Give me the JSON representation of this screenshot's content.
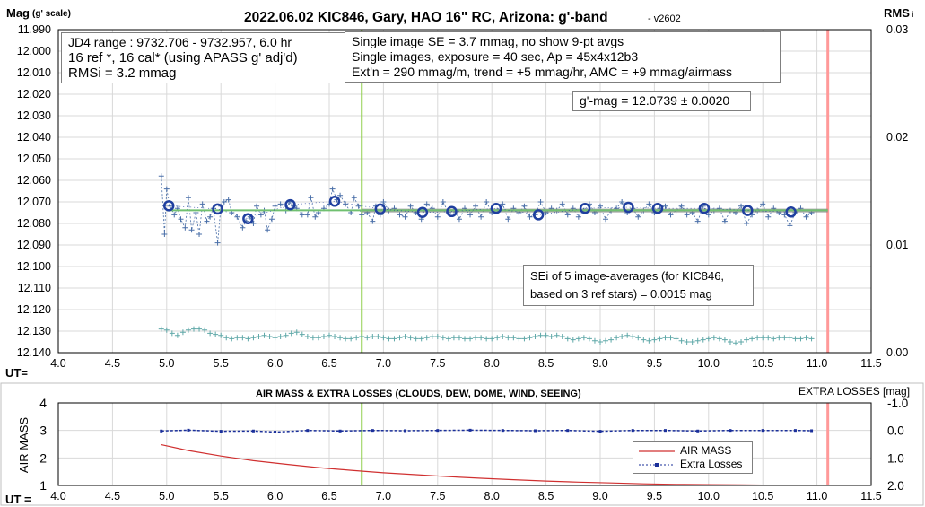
{
  "chart_data": [
    {
      "type": "scatter",
      "title": "2022.06.02 KIC846, Gary, HAO 16\" RC, Arizona: g'-band",
      "version": "- v2602",
      "ylabel": "Mag",
      "ylabel_suffix": "(g' scale)",
      "y2label": "RMS",
      "y2label_suffix": "i",
      "xlabel": "UT=",
      "xlim": [
        4.0,
        11.5
      ],
      "ylim": [
        12.14,
        11.99
      ],
      "y2lim": [
        0.0,
        0.03
      ],
      "x_ticks": [
        "4.0",
        "4.5",
        "5.0",
        "5.5",
        "6.0",
        "6.5",
        "7.0",
        "7.5",
        "8.0",
        "8.5",
        "9.0",
        "9.5",
        "10.0",
        "10.5",
        "11.0",
        "11.5"
      ],
      "y_ticks": [
        "11.990",
        "12.000",
        "12.010",
        "12.020",
        "12.030",
        "12.040",
        "12.050",
        "12.060",
        "12.070",
        "12.080",
        "12.090",
        "12.100",
        "12.110",
        "12.120",
        "12.130",
        "12.140"
      ],
      "y2_ticks": [
        "0.03",
        "0.02",
        "0.01",
        "0.00"
      ],
      "grid": true,
      "annotations": [
        [
          "JD4 range : 9732.706 - 9732.957,  6.0 hr",
          "16 ref *, 16 cal* (using APASS g' adj'd)",
          "RMSi = 3.2 mmag"
        ],
        [
          "Single image SE = 3.7 mmag, no show  9-pt avgs",
          "Single images, exposure = 40 sec, Ap = 45x4x12b3",
          "Ext'n = 290 mmag/m, trend = +5 mmag/hr, AMC = +9 mmag/airmass"
        ],
        [
          "g'-mag = 12.0739 ± 0.0020"
        ],
        [
          "SEi of 5 image-averages (for KIC846,",
          "based on 3 ref stars) = 0.0015 mag"
        ]
      ],
      "vertical_lines": [
        {
          "name": "mid-time",
          "x": 6.8,
          "color": "#92d050"
        },
        {
          "name": "end-marker",
          "x": 11.1,
          "color": "#ff9999"
        }
      ],
      "fit_line": {
        "y": 12.0739,
        "x_start": 5.0,
        "x_end": 11.1,
        "color": "#70c070"
      },
      "trend_line": {
        "y": 12.074,
        "x_start": 6.8,
        "x_end": 11.1,
        "color": "#808080"
      },
      "series": [
        {
          "kind": "image-averages",
          "color": "#1f3f9f",
          "x": [
            5.02,
            5.47,
            5.75,
            6.14,
            6.55,
            6.97,
            7.36,
            7.63,
            8.04,
            8.43,
            8.86,
            9.26,
            9.53,
            9.96,
            10.36,
            10.76
          ],
          "y": [
            12.0718,
            12.0733,
            12.0778,
            12.0713,
            12.0697,
            12.0733,
            12.0749,
            12.0745,
            12.073,
            12.076,
            12.073,
            12.0725,
            12.073,
            12.073,
            12.074,
            12.0747
          ]
        },
        {
          "kind": "single-images",
          "color": "#4a6fa8",
          "x": [
            4.95,
            4.98,
            5.0,
            5.03,
            5.07,
            5.1,
            5.13,
            5.17,
            5.2,
            5.23,
            5.27,
            5.3,
            5.33,
            5.37,
            5.4,
            5.43,
            5.47,
            5.5,
            5.53,
            5.57,
            5.6,
            5.65,
            5.7,
            5.73,
            5.77,
            5.8,
            5.83,
            5.87,
            5.9,
            5.93,
            5.97,
            6.0,
            6.05,
            6.1,
            6.13,
            6.17,
            6.2,
            6.25,
            6.3,
            6.33,
            6.37,
            6.4,
            6.45,
            6.5,
            6.53,
            6.57,
            6.6,
            6.65,
            6.7,
            6.73,
            6.77,
            6.8,
            6.85,
            6.9,
            6.93,
            6.97,
            7.0,
            7.05,
            7.1,
            7.15,
            7.2,
            7.25,
            7.3,
            7.35,
            7.4,
            7.45,
            7.5,
            7.55,
            7.6,
            7.65,
            7.7,
            7.75,
            7.8,
            7.85,
            7.9,
            7.95,
            8.0,
            8.05,
            8.1,
            8.15,
            8.2,
            8.25,
            8.3,
            8.35,
            8.4,
            8.45,
            8.5,
            8.55,
            8.6,
            8.65,
            8.7,
            8.75,
            8.8,
            8.85,
            8.9,
            8.95,
            9.0,
            9.05,
            9.1,
            9.15,
            9.2,
            9.25,
            9.3,
            9.35,
            9.4,
            9.45,
            9.5,
            9.55,
            9.6,
            9.65,
            9.7,
            9.75,
            9.8,
            9.85,
            9.9,
            9.95,
            10.0,
            10.05,
            10.1,
            10.15,
            10.2,
            10.25,
            10.3,
            10.35,
            10.4,
            10.45,
            10.5,
            10.55,
            10.6,
            10.65,
            10.7,
            10.75,
            10.8,
            10.85,
            10.9,
            10.95
          ],
          "y": [
            12.058,
            12.085,
            12.064,
            12.072,
            12.076,
            12.073,
            12.078,
            12.082,
            12.068,
            12.083,
            12.075,
            12.085,
            12.071,
            12.079,
            12.077,
            12.073,
            12.089,
            12.072,
            12.07,
            12.069,
            12.075,
            12.077,
            12.082,
            12.079,
            12.077,
            12.08,
            12.072,
            12.076,
            12.074,
            12.083,
            12.078,
            12.072,
            12.071,
            12.074,
            12.07,
            12.072,
            12.073,
            12.076,
            12.076,
            12.068,
            12.077,
            12.075,
            12.073,
            12.071,
            12.064,
            12.069,
            12.067,
            12.071,
            12.075,
            12.068,
            12.072,
            12.076,
            12.075,
            12.079,
            12.072,
            12.076,
            12.07,
            12.074,
            12.073,
            12.076,
            12.077,
            12.072,
            12.075,
            12.078,
            12.071,
            12.073,
            12.077,
            12.07,
            12.075,
            12.074,
            12.078,
            12.073,
            12.076,
            12.072,
            12.077,
            12.07,
            12.075,
            12.074,
            12.071,
            12.078,
            12.073,
            12.075,
            12.072,
            12.077,
            12.076,
            12.07,
            12.075,
            12.073,
            12.074,
            12.071,
            12.076,
            12.073,
            12.077,
            12.074,
            12.071,
            12.075,
            12.072,
            12.078,
            12.074,
            12.073,
            12.07,
            12.075,
            12.073,
            12.077,
            12.074,
            12.071,
            12.075,
            12.073,
            12.072,
            12.076,
            12.074,
            12.072,
            12.076,
            12.075,
            12.079,
            12.072,
            12.076,
            12.074,
            12.073,
            12.079,
            12.074,
            12.075,
            12.072,
            12.08,
            12.076,
            12.074,
            12.071,
            12.077,
            12.073,
            12.075,
            12.076,
            12.081,
            12.075,
            12.073,
            12.077,
            12.075
          ]
        },
        {
          "kind": "RMSi",
          "axis": "right",
          "color": "#5fa8a8",
          "x": [
            4.95,
            5.0,
            5.05,
            5.1,
            5.15,
            5.2,
            5.25,
            5.3,
            5.35,
            5.4,
            5.45,
            5.5,
            5.55,
            5.6,
            5.65,
            5.7,
            5.75,
            5.8,
            5.85,
            5.9,
            5.95,
            6.0,
            6.05,
            6.1,
            6.15,
            6.2,
            6.25,
            6.3,
            6.35,
            6.4,
            6.45,
            6.5,
            6.55,
            6.6,
            6.65,
            6.7,
            6.75,
            6.8,
            6.85,
            6.9,
            6.95,
            7.0,
            7.05,
            7.1,
            7.15,
            7.2,
            7.25,
            7.3,
            7.35,
            7.4,
            7.45,
            7.5,
            7.55,
            7.6,
            7.65,
            7.7,
            7.75,
            7.8,
            7.85,
            7.9,
            7.95,
            8.0,
            8.05,
            8.1,
            8.15,
            8.2,
            8.25,
            8.3,
            8.35,
            8.4,
            8.45,
            8.5,
            8.55,
            8.6,
            8.65,
            8.7,
            8.75,
            8.8,
            8.85,
            8.9,
            8.95,
            9.0,
            9.05,
            9.1,
            9.15,
            9.2,
            9.25,
            9.3,
            9.35,
            9.4,
            9.45,
            9.5,
            9.55,
            9.6,
            9.65,
            9.7,
            9.75,
            9.8,
            9.85,
            9.9,
            9.95,
            10.0,
            10.05,
            10.1,
            10.15,
            10.2,
            10.25,
            10.3,
            10.35,
            10.4,
            10.45,
            10.5,
            10.55,
            10.6,
            10.65,
            10.7,
            10.75,
            10.8,
            10.85,
            10.9,
            10.95
          ],
          "y": [
            0.0022,
            0.0021,
            0.0018,
            0.0016,
            0.0019,
            0.0021,
            0.0022,
            0.0022,
            0.0021,
            0.0018,
            0.0017,
            0.0016,
            0.0014,
            0.0013,
            0.0014,
            0.0014,
            0.0013,
            0.0014,
            0.0015,
            0.0016,
            0.0015,
            0.0014,
            0.0015,
            0.0016,
            0.0018,
            0.0019,
            0.0017,
            0.0015,
            0.0014,
            0.0014,
            0.0015,
            0.0016,
            0.0015,
            0.0014,
            0.0013,
            0.0013,
            0.0014,
            0.0015,
            0.0014,
            0.0015,
            0.0015,
            0.0014,
            0.0013,
            0.0013,
            0.0014,
            0.0015,
            0.0014,
            0.0013,
            0.0013,
            0.0014,
            0.0015,
            0.0015,
            0.0014,
            0.0013,
            0.0014,
            0.0014,
            0.0013,
            0.0013,
            0.0014,
            0.0014,
            0.0013,
            0.0013,
            0.0014,
            0.0015,
            0.0014,
            0.0014,
            0.0013,
            0.0013,
            0.0014,
            0.0015,
            0.0016,
            0.0016,
            0.0015,
            0.0016,
            0.0015,
            0.0013,
            0.0012,
            0.0013,
            0.0014,
            0.0013,
            0.0011,
            0.001,
            0.0011,
            0.0012,
            0.0014,
            0.0015,
            0.0016,
            0.0015,
            0.0014,
            0.0012,
            0.0011,
            0.0012,
            0.0013,
            0.0014,
            0.0014,
            0.0013,
            0.0011,
            0.001,
            0.001,
            0.0011,
            0.0012,
            0.0013,
            0.0014,
            0.0013,
            0.0012,
            0.001,
            0.0009,
            0.001,
            0.0012,
            0.0013,
            0.0014,
            0.0014,
            0.0014,
            0.0013,
            0.0014,
            0.0014,
            0.0014,
            0.0013,
            0.0013,
            0.0014,
            0.0013
          ]
        }
      ]
    },
    {
      "type": "line",
      "title": "AIR MASS & EXTRA LOSSES (CLOUDS, DEW, DOME, WIND, SEEING)",
      "ylabel": "AIR MASS",
      "y2label": "EXTRA LOSSES [mag]",
      "xlabel": "UT =",
      "xlim": [
        4.0,
        11.5
      ],
      "ylim": [
        1,
        4
      ],
      "y2lim": [
        2.0,
        -1.0
      ],
      "x_ticks": [
        "4.0",
        "4.5",
        "5.0",
        "5.5",
        "6.0",
        "6.5",
        "7.0",
        "7.5",
        "8.0",
        "8.5",
        "9.0",
        "9.5",
        "10.0",
        "10.5",
        "11.0",
        "11.5"
      ],
      "y_ticks": [
        "4",
        "3",
        "2",
        "1"
      ],
      "y2_ticks": [
        "-1.0",
        "0.0",
        "1.0",
        "2.0"
      ],
      "legend_position": "bottom-right",
      "vertical_lines": [
        {
          "name": "mid-time",
          "x": 6.8,
          "color": "#92d050"
        },
        {
          "name": "end-marker",
          "x": 11.1,
          "color": "#ff9999"
        }
      ],
      "series": [
        {
          "name": "AIR MASS",
          "axis": "left",
          "color": "#d03030",
          "x": [
            4.95,
            5.2,
            5.5,
            5.8,
            6.1,
            6.4,
            6.7,
            7.0,
            7.3,
            7.6,
            7.9,
            8.2,
            8.5,
            8.8,
            9.1,
            9.4,
            9.7,
            10.0,
            10.3,
            10.6,
            10.95
          ],
          "y": [
            2.48,
            2.27,
            2.07,
            1.9,
            1.77,
            1.65,
            1.55,
            1.46,
            1.39,
            1.32,
            1.26,
            1.21,
            1.16,
            1.12,
            1.09,
            1.06,
            1.04,
            1.03,
            1.02,
            1.01,
            1.01
          ]
        },
        {
          "name": "Extra Losses",
          "axis": "right",
          "color": "#1a2f9a",
          "x": [
            4.95,
            5.2,
            5.5,
            5.8,
            6.0,
            6.3,
            6.6,
            6.9,
            7.2,
            7.5,
            7.8,
            8.1,
            8.4,
            8.7,
            9.0,
            9.3,
            9.6,
            9.9,
            10.2,
            10.5,
            10.8,
            10.95
          ],
          "y": [
            0.02,
            -0.01,
            0.03,
            0.02,
            0.06,
            0.0,
            0.02,
            0.0,
            0.01,
            0.0,
            -0.01,
            0.0,
            0.01,
            0.0,
            0.03,
            0.0,
            0.0,
            0.02,
            0.0,
            0.0,
            0.0,
            0.01
          ]
        }
      ]
    }
  ]
}
